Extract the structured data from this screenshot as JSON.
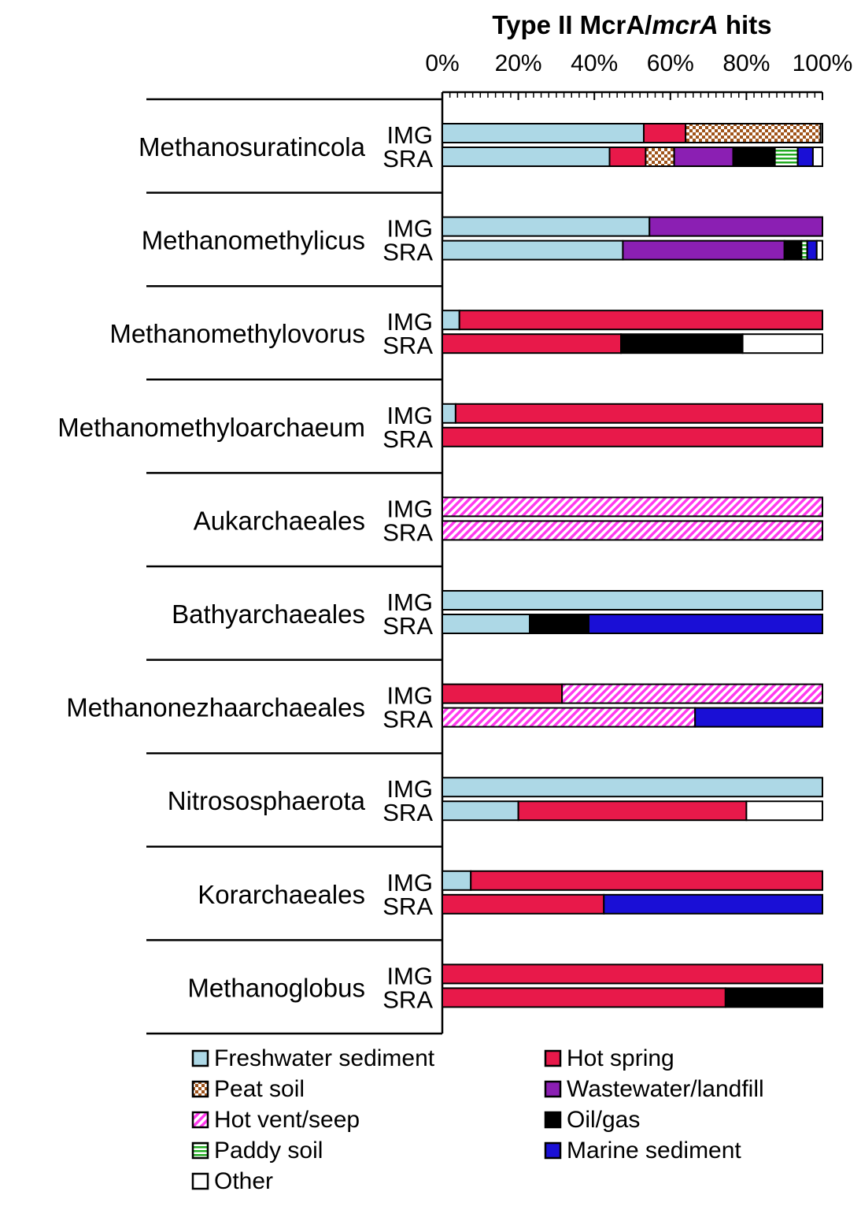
{
  "chart_data": {
    "type": "bar",
    "orientation": "horizontal",
    "stacked": true,
    "normalized": true,
    "title_parts": [
      {
        "text": "Type II McrA/",
        "italic": false
      },
      {
        "text": "mcrA",
        "italic": true
      },
      {
        "text": " hits",
        "italic": false
      }
    ],
    "xlim": [
      0,
      100
    ],
    "x_unit": "%",
    "x_ticks": [
      "0%",
      "20%",
      "40%",
      "60%",
      "80%",
      "100%"
    ],
    "x_tick_values": [
      0,
      20,
      40,
      60,
      80,
      100
    ],
    "legend_position": "bottom",
    "categories": [
      {
        "label": "Freshwater sediment",
        "key": "freshwater",
        "color": "#add8e6",
        "pattern": null
      },
      {
        "label": "Peat soil",
        "key": "peat",
        "color": "#b5651d",
        "pattern": "checker"
      },
      {
        "label": "Hot vent/seep",
        "key": "vent",
        "color": "#ff44ee",
        "pattern": "diagonal"
      },
      {
        "label": "Paddy soil",
        "key": "paddy",
        "color": "#22aa22",
        "pattern": "horizontal"
      },
      {
        "label": "Other",
        "key": "other",
        "color": "#ffffff",
        "pattern": null
      },
      {
        "label": "Hot spring",
        "key": "hotspring",
        "color": "#e8194a",
        "pattern": null
      },
      {
        "label": "Wastewater/landfill",
        "key": "wastewater",
        "color": "#8b1fb3",
        "pattern": null
      },
      {
        "label": "Oil/gas",
        "key": "oilgas",
        "color": "#000000",
        "pattern": null
      },
      {
        "label": "Marine sediment",
        "key": "marine",
        "color": "#1a0fd6",
        "pattern": null
      }
    ],
    "groups": [
      {
        "name": "Methanosuratincola",
        "rows": [
          {
            "source": "IMG",
            "segments": [
              {
                "key": "freshwater",
                "value": 53
              },
              {
                "key": "hotspring",
                "value": 11
              },
              {
                "key": "peat",
                "value": 35.5
              },
              {
                "key": "other",
                "value": 0.5
              }
            ]
          },
          {
            "source": "SRA",
            "segments": [
              {
                "key": "freshwater",
                "value": 44
              },
              {
                "key": "hotspring",
                "value": 9.5
              },
              {
                "key": "peat",
                "value": 7.5
              },
              {
                "key": "wastewater",
                "value": 15.5
              },
              {
                "key": "oilgas",
                "value": 11
              },
              {
                "key": "paddy",
                "value": 6
              },
              {
                "key": "marine",
                "value": 4
              },
              {
                "key": "other",
                "value": 2.5
              }
            ]
          }
        ]
      },
      {
        "name": "Methanomethylicus",
        "rows": [
          {
            "source": "IMG",
            "segments": [
              {
                "key": "freshwater",
                "value": 54.5
              },
              {
                "key": "wastewater",
                "value": 45.5
              }
            ]
          },
          {
            "source": "SRA",
            "segments": [
              {
                "key": "freshwater",
                "value": 47.5
              },
              {
                "key": "wastewater",
                "value": 42.5
              },
              {
                "key": "oilgas",
                "value": 4.5
              },
              {
                "key": "paddy",
                "value": 1.5
              },
              {
                "key": "marine",
                "value": 2.5
              },
              {
                "key": "other",
                "value": 1.5
              }
            ]
          }
        ]
      },
      {
        "name": "Methanomethylovorus",
        "rows": [
          {
            "source": "IMG",
            "segments": [
              {
                "key": "freshwater",
                "value": 4.5
              },
              {
                "key": "hotspring",
                "value": 95.5
              }
            ]
          },
          {
            "source": "SRA",
            "segments": [
              {
                "key": "hotspring",
                "value": 47
              },
              {
                "key": "oilgas",
                "value": 32
              },
              {
                "key": "other",
                "value": 21
              }
            ]
          }
        ]
      },
      {
        "name": "Methanomethyloarchaeum",
        "rows": [
          {
            "source": "IMG",
            "segments": [
              {
                "key": "freshwater",
                "value": 3.5
              },
              {
                "key": "hotspring",
                "value": 96.5
              }
            ]
          },
          {
            "source": "SRA",
            "segments": [
              {
                "key": "hotspring",
                "value": 100
              }
            ]
          }
        ]
      },
      {
        "name": "Aukarchaeales",
        "rows": [
          {
            "source": "IMG",
            "segments": [
              {
                "key": "vent",
                "value": 100
              }
            ]
          },
          {
            "source": "SRA",
            "segments": [
              {
                "key": "vent",
                "value": 100
              }
            ]
          }
        ]
      },
      {
        "name": "Bathyarchaeales",
        "rows": [
          {
            "source": "IMG",
            "segments": [
              {
                "key": "freshwater",
                "value": 100
              }
            ]
          },
          {
            "source": "SRA",
            "segments": [
              {
                "key": "freshwater",
                "value": 23
              },
              {
                "key": "oilgas",
                "value": 15.5
              },
              {
                "key": "marine",
                "value": 61.5
              }
            ]
          }
        ]
      },
      {
        "name": "Methanonezhaarchaeales",
        "rows": [
          {
            "source": "IMG",
            "segments": [
              {
                "key": "hotspring",
                "value": 31.5
              },
              {
                "key": "vent",
                "value": 68.5
              }
            ]
          },
          {
            "source": "SRA",
            "segments": [
              {
                "key": "vent",
                "value": 66.5
              },
              {
                "key": "marine",
                "value": 33.5
              }
            ]
          }
        ]
      },
      {
        "name": "Nitrososphaerota",
        "rows": [
          {
            "source": "IMG",
            "segments": [
              {
                "key": "freshwater",
                "value": 100
              }
            ]
          },
          {
            "source": "SRA",
            "segments": [
              {
                "key": "freshwater",
                "value": 20
              },
              {
                "key": "hotspring",
                "value": 60
              },
              {
                "key": "other",
                "value": 20
              }
            ]
          }
        ]
      },
      {
        "name": "Korarchaeales",
        "rows": [
          {
            "source": "IMG",
            "segments": [
              {
                "key": "freshwater",
                "value": 7.5
              },
              {
                "key": "hotspring",
                "value": 92.5
              }
            ]
          },
          {
            "source": "SRA",
            "segments": [
              {
                "key": "hotspring",
                "value": 42.5
              },
              {
                "key": "marine",
                "value": 57.5
              }
            ]
          }
        ]
      },
      {
        "name": "Methanoglobus",
        "rows": [
          {
            "source": "IMG",
            "segments": [
              {
                "key": "hotspring",
                "value": 100
              }
            ]
          },
          {
            "source": "SRA",
            "segments": [
              {
                "key": "hotspring",
                "value": 74.5
              },
              {
                "key": "oilgas",
                "value": 25.5
              }
            ]
          }
        ]
      }
    ]
  }
}
